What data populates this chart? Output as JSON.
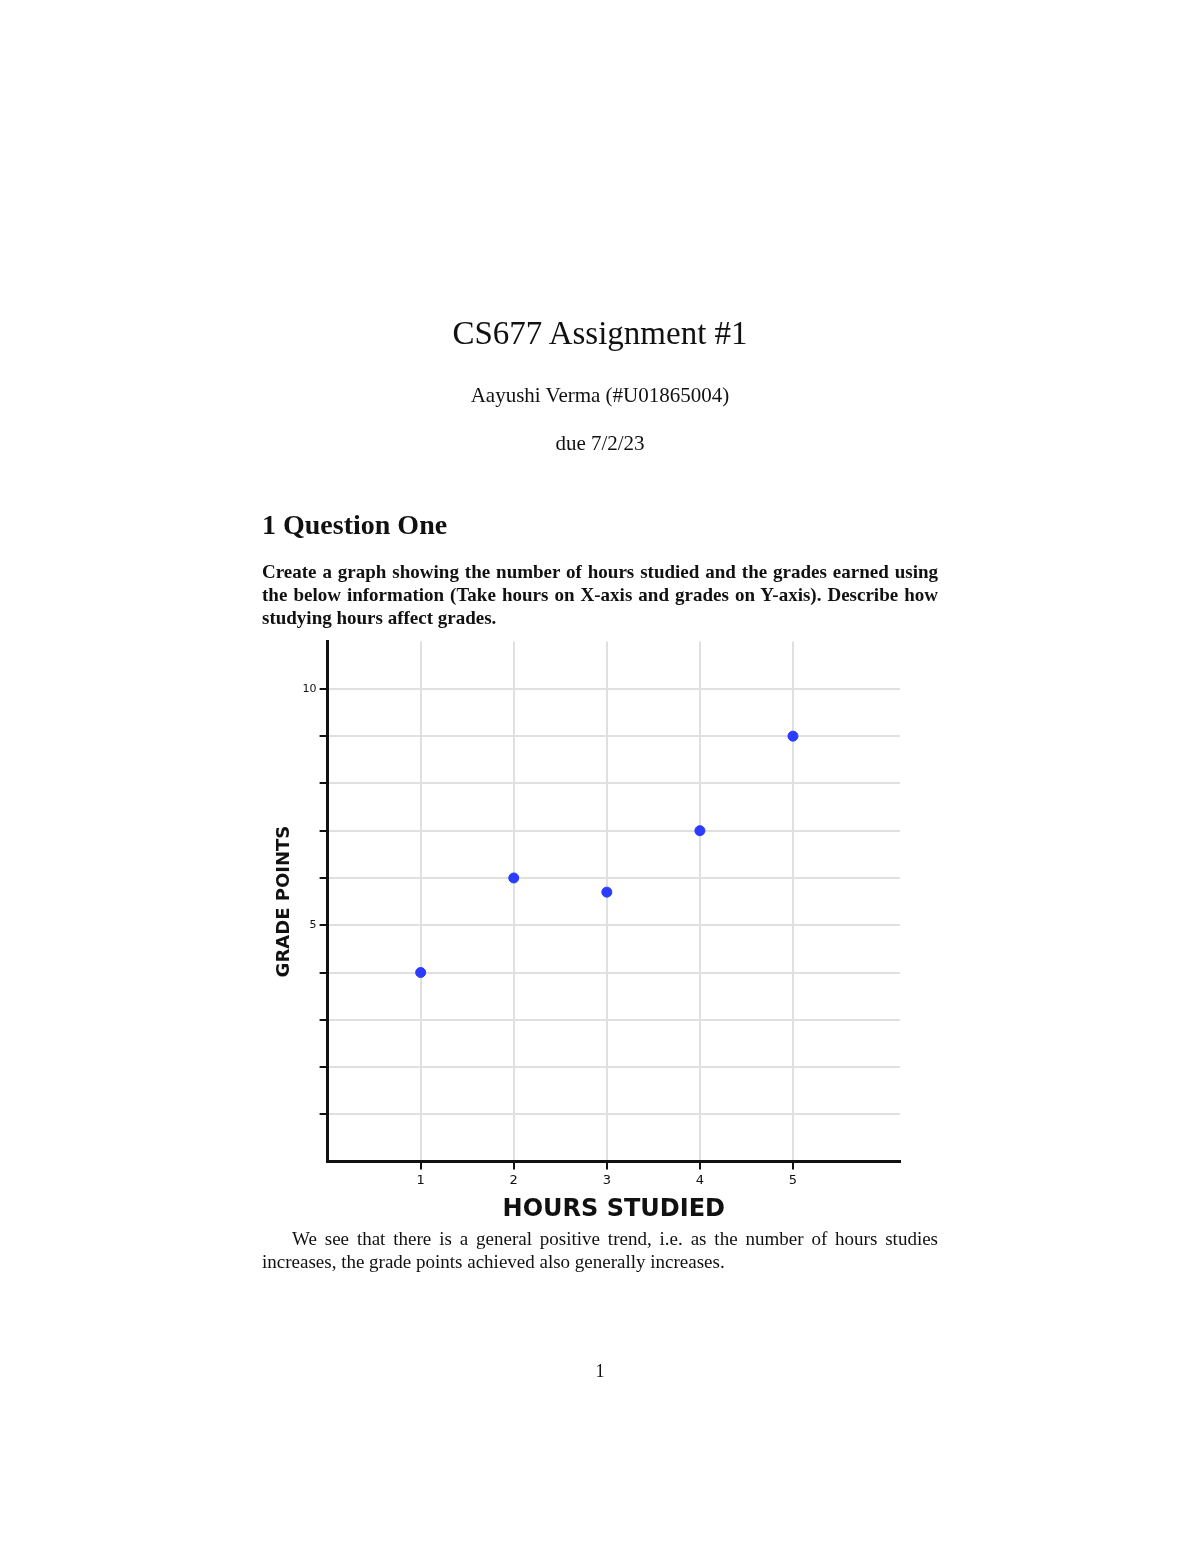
{
  "chart_data": {
    "type": "scatter",
    "title": "CS677 Assignment #1",
    "subtitle": "Aayushi Verma (#U01865004)",
    "annotations": [
      "due 7/2/23",
      "1 Question One",
      "Create a graph showing the number of hours studied and the grades earned using the below information (Take hours on X-axis and grades on Y-axis). Describe how studying hours affect grades.",
      "We see that there is a general positive trend, i.e. as the number of hours studies increases, the grade points achieved also generally increases.",
      "1"
    ],
    "xlabel": "HOURS STUDIED",
    "ylabel": "GRADE POINTS",
    "x": [
      1,
      2,
      3,
      4,
      5
    ],
    "values": [
      4,
      6,
      5.7,
      7,
      9
    ],
    "color": "#2b3bff",
    "marker": "circle",
    "xlim": [
      0,
      6.15
    ],
    "ylim": [
      0,
      11
    ],
    "xticks": [
      1,
      2,
      3,
      4,
      5
    ],
    "yticks": [
      {
        "value": 1,
        "label": null
      },
      {
        "value": 2,
        "label": null
      },
      {
        "value": 3,
        "label": null
      },
      {
        "value": 4,
        "label": null
      },
      5,
      {
        "value": 6,
        "label": null
      },
      {
        "value": 7,
        "label": null
      },
      {
        "value": 8,
        "label": null
      },
      {
        "value": 9,
        "label": null
      },
      10
    ],
    "grid": true
  }
}
